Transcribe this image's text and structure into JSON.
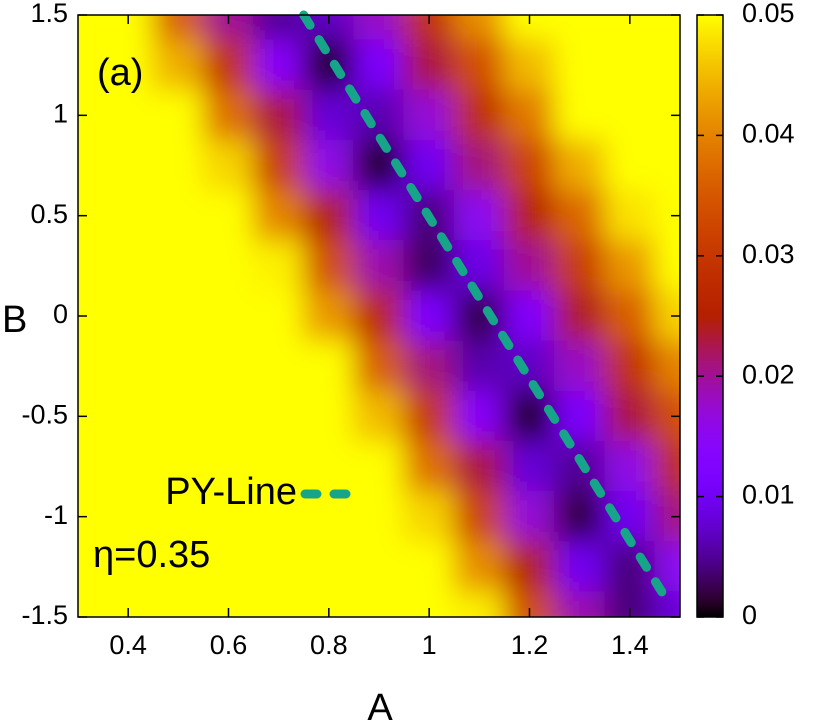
{
  "chart_data": {
    "type": "heatmap",
    "xlabel": "A",
    "ylabel": "B",
    "x": [
      0.3,
      0.4,
      0.5,
      0.6,
      0.7,
      0.8,
      0.9,
      1.0,
      1.1,
      1.2,
      1.3,
      1.4,
      1.5
    ],
    "y": [
      1.5,
      1.25,
      1.0,
      0.75,
      0.5,
      0.25,
      0,
      -0.25,
      -0.5,
      -0.75,
      -1.0,
      -1.25,
      -1.5
    ],
    "z": [
      [
        0.05,
        0.05,
        0.036,
        0.02,
        0.005,
        0.007,
        0.018,
        0.029,
        0.041,
        0.05,
        0.05,
        0.05,
        0.05
      ],
      [
        0.05,
        0.05,
        0.044,
        0.029,
        0.014,
        0.001,
        0.012,
        0.023,
        0.034,
        0.045,
        0.05,
        0.05,
        0.05
      ],
      [
        0.05,
        0.05,
        0.05,
        0.038,
        0.023,
        0.008,
        0.006,
        0.017,
        0.028,
        0.039,
        0.05,
        0.05,
        0.05
      ],
      [
        0.05,
        0.05,
        0.05,
        0.047,
        0.031,
        0.016,
        0.001,
        0.01,
        0.021,
        0.032,
        0.044,
        0.05,
        0.05
      ],
      [
        0.05,
        0.05,
        0.05,
        0.05,
        0.04,
        0.025,
        0.01,
        0.004,
        0.015,
        0.026,
        0.037,
        0.048,
        0.05
      ],
      [
        0.05,
        0.05,
        0.05,
        0.05,
        0.049,
        0.034,
        0.019,
        0.003,
        0.009,
        0.02,
        0.031,
        0.042,
        0.05
      ],
      [
        0.05,
        0.05,
        0.05,
        0.05,
        0.05,
        0.042,
        0.027,
        0.012,
        0.002,
        0.013,
        0.024,
        0.036,
        0.047
      ],
      [
        0.05,
        0.05,
        0.05,
        0.05,
        0.05,
        0.05,
        0.036,
        0.021,
        0.006,
        0.007,
        0.018,
        0.029,
        0.04
      ],
      [
        0.05,
        0.05,
        0.05,
        0.05,
        0.05,
        0.05,
        0.045,
        0.03,
        0.014,
        0.001,
        0.012,
        0.023,
        0.034
      ],
      [
        0.05,
        0.05,
        0.05,
        0.05,
        0.05,
        0.05,
        0.05,
        0.038,
        0.023,
        0.008,
        0.005,
        0.016,
        0.028
      ],
      [
        0.05,
        0.05,
        0.05,
        0.05,
        0.05,
        0.05,
        0.05,
        0.047,
        0.032,
        0.017,
        0.002,
        0.01,
        0.021
      ],
      [
        0.05,
        0.05,
        0.05,
        0.05,
        0.05,
        0.05,
        0.05,
        0.05,
        0.041,
        0.025,
        0.01,
        0.004,
        0.015
      ],
      [
        0.05,
        0.05,
        0.05,
        0.05,
        0.05,
        0.05,
        0.05,
        0.05,
        0.049,
        0.034,
        0.019,
        0.004,
        0.008
      ]
    ],
    "xlim": [
      0.3,
      1.5
    ],
    "ylim": [
      -1.5,
      1.5
    ],
    "xticks": [
      0.4,
      0.6,
      0.8,
      1,
      1.2,
      1.4
    ],
    "yticks": [
      -1.5,
      -1,
      -0.5,
      0,
      0.5,
      1,
      1.5
    ],
    "colorbar": {
      "lim": [
        0,
        0.05
      ],
      "ticks": [
        0,
        0.01,
        0.02,
        0.03,
        0.04,
        0.05
      ]
    },
    "series": [
      {
        "name": "PY-Line",
        "color": "#17a58a",
        "x": [
          0.75,
          1.47
        ],
        "values": [
          1.5,
          -1.4
        ]
      }
    ],
    "annotations": [
      "(a)",
      "η=0.35"
    ]
  }
}
